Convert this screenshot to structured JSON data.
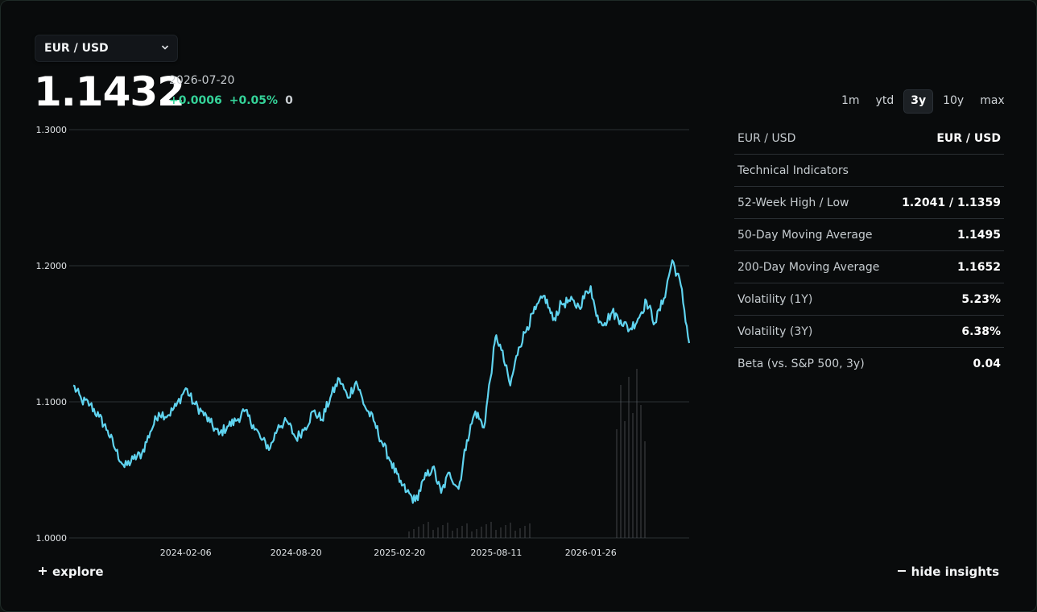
{
  "pair_selector": {
    "label": "EUR / USD",
    "icon": "chevron-down-icon"
  },
  "quote": {
    "price": "1.1432",
    "date": "2026-07-20",
    "change_abs": "+0.0006",
    "change_pct": "+0.05%",
    "volume": "0"
  },
  "ranges": [
    {
      "label": "1m",
      "active": false
    },
    {
      "label": "ytd",
      "active": false
    },
    {
      "label": "3y",
      "active": true
    },
    {
      "label": "10y",
      "active": false
    },
    {
      "label": "max",
      "active": false
    }
  ],
  "insights": {
    "header_label": "EUR / USD",
    "header_value": "EUR / USD",
    "section_title": "Technical Indicators",
    "rows": [
      {
        "label": "52-Week High / Low",
        "value": "1.2041 / 1.1359"
      },
      {
        "label": "50-Day Moving Average",
        "value": "1.1495"
      },
      {
        "label": "200-Day Moving Average",
        "value": "1.1652"
      },
      {
        "label": "Volatility (1Y)",
        "value": "5.23%"
      },
      {
        "label": "Volatility (3Y)",
        "value": "6.38%"
      },
      {
        "label": "Beta (vs. S&P 500, 3y)",
        "value": "0.04"
      }
    ]
  },
  "footer": {
    "explore_label": "explore",
    "explore_icon": "plus-icon",
    "hide_label": "hide insights",
    "hide_icon": "minus-icon"
  },
  "colors": {
    "line": "#5fd3ef",
    "positive": "#34d399",
    "volume": "#5b5f63"
  },
  "chart_data": {
    "type": "line",
    "ylim": [
      1.0,
      1.3
    ],
    "y_ticks": [
      "1.0000",
      "1.1000",
      "1.2000",
      "1.3000"
    ],
    "x_ticks": [
      "2024-02-06",
      "2024-08-20",
      "2025-02-20",
      "2025-08-11",
      "2026-01-26"
    ],
    "x_range": [
      "2023-07-21",
      "2026-07-20"
    ],
    "grid": true,
    "series": [
      {
        "values": [
          [
            "2023-07-21",
            1.112
          ],
          [
            "2023-08-05",
            1.101
          ],
          [
            "2023-08-20",
            1.098
          ],
          [
            "2023-09-05",
            1.089
          ],
          [
            "2023-09-20",
            1.079
          ],
          [
            "2023-10-05",
            1.064
          ],
          [
            "2023-10-20",
            1.052
          ],
          [
            "2023-11-05",
            1.058
          ],
          [
            "2023-11-20",
            1.062
          ],
          [
            "2023-12-05",
            1.078
          ],
          [
            "2023-12-20",
            1.092
          ],
          [
            "2024-01-05",
            1.09
          ],
          [
            "2024-01-20",
            1.097
          ],
          [
            "2024-02-06",
            1.11
          ],
          [
            "2024-02-20",
            1.099
          ],
          [
            "2024-03-05",
            1.093
          ],
          [
            "2024-03-20",
            1.085
          ],
          [
            "2024-04-05",
            1.076
          ],
          [
            "2024-04-20",
            1.082
          ],
          [
            "2024-05-05",
            1.086
          ],
          [
            "2024-05-20",
            1.093
          ],
          [
            "2024-06-05",
            1.083
          ],
          [
            "2024-06-20",
            1.072
          ],
          [
            "2024-07-05",
            1.066
          ],
          [
            "2024-07-20",
            1.083
          ],
          [
            "2024-08-05",
            1.085
          ],
          [
            "2024-08-20",
            1.073
          ],
          [
            "2024-09-05",
            1.081
          ],
          [
            "2024-09-20",
            1.093
          ],
          [
            "2024-10-05",
            1.087
          ],
          [
            "2024-10-20",
            1.103
          ],
          [
            "2024-11-05",
            1.117
          ],
          [
            "2024-11-20",
            1.103
          ],
          [
            "2024-12-05",
            1.115
          ],
          [
            "2024-12-20",
            1.097
          ],
          [
            "2025-01-05",
            1.086
          ],
          [
            "2025-01-20",
            1.07
          ],
          [
            "2025-02-05",
            1.056
          ],
          [
            "2025-02-20",
            1.041
          ],
          [
            "2025-03-05",
            1.034
          ],
          [
            "2025-03-20",
            1.027
          ],
          [
            "2025-04-05",
            1.043
          ],
          [
            "2025-04-20",
            1.052
          ],
          [
            "2025-05-05",
            1.033
          ],
          [
            "2025-05-20",
            1.048
          ],
          [
            "2025-06-05",
            1.036
          ],
          [
            "2025-06-20",
            1.072
          ],
          [
            "2025-07-05",
            1.093
          ],
          [
            "2025-07-20",
            1.081
          ],
          [
            "2025-08-05",
            1.132
          ],
          [
            "2025-08-11",
            1.149
          ],
          [
            "2025-08-20",
            1.138
          ],
          [
            "2025-09-05",
            1.112
          ],
          [
            "2025-09-20",
            1.14
          ],
          [
            "2025-10-05",
            1.155
          ],
          [
            "2025-10-20",
            1.168
          ],
          [
            "2025-11-05",
            1.178
          ],
          [
            "2025-11-20",
            1.16
          ],
          [
            "2025-12-05",
            1.172
          ],
          [
            "2025-12-20",
            1.174
          ],
          [
            "2026-01-05",
            1.17
          ],
          [
            "2026-01-26",
            1.185
          ],
          [
            "2026-02-05",
            1.163
          ],
          [
            "2026-02-20",
            1.158
          ],
          [
            "2026-03-05",
            1.166
          ],
          [
            "2026-03-20",
            1.16
          ],
          [
            "2026-04-05",
            1.153
          ],
          [
            "2026-04-20",
            1.161
          ],
          [
            "2026-05-05",
            1.174
          ],
          [
            "2026-05-20",
            1.158
          ],
          [
            "2026-06-05",
            1.176
          ],
          [
            "2026-06-20",
            1.204
          ],
          [
            "2026-07-05",
            1.186
          ],
          [
            "2026-07-20",
            1.1432
          ]
        ]
      }
    ]
  }
}
